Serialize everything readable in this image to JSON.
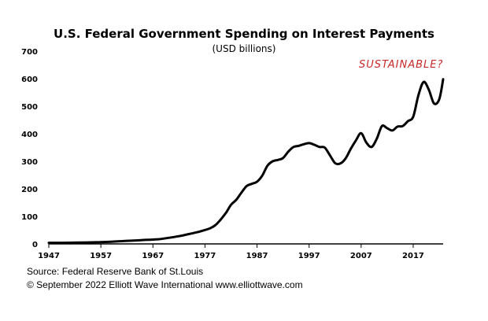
{
  "chart_data": {
    "type": "line",
    "title": "U.S. Federal Government Spending on Interest Payments",
    "subtitle": "(USD billions)",
    "annotation": "SUSTAINABLE?",
    "xlabel": "",
    "ylabel": "",
    "xlim": [
      1947,
      2022.75
    ],
    "ylim": [
      0,
      700
    ],
    "yticks": [
      0,
      100,
      200,
      300,
      400,
      500,
      600,
      700
    ],
    "xticks": [
      1947,
      1957,
      1967,
      1977,
      1987,
      1997,
      2007,
      2017
    ],
    "grid": false,
    "line_color": "#000000",
    "annotation_color": "#c62828",
    "series": [
      {
        "x": [
          1947,
          1950,
          1953,
          1956,
          1959,
          1962,
          1965,
          1968,
          1970,
          1972,
          1974,
          1976,
          1978,
          1979,
          1980,
          1981,
          1982,
          1983,
          1984,
          1985,
          1986,
          1987,
          1988,
          1989,
          1990,
          1991,
          1992,
          1993,
          1994,
          1995,
          1996,
          1997,
          1998,
          1999,
          2000,
          2001,
          2002,
          2003,
          2004,
          2005,
          2006,
          2007,
          2008,
          2009,
          2010,
          2011,
          2012,
          2013,
          2014,
          2015,
          2016,
          2017,
          2018,
          2019,
          2020,
          2021,
          2022,
          2022.75
        ],
        "y": [
          4,
          4,
          5,
          6,
          8,
          11,
          14,
          17,
          22,
          28,
          36,
          45,
          57,
          68,
          88,
          112,
          142,
          160,
          186,
          210,
          218,
          226,
          248,
          284,
          300,
          305,
          312,
          335,
          352,
          356,
          362,
          366,
          360,
          352,
          350,
          322,
          293,
          292,
          310,
          345,
          376,
          402,
          368,
          352,
          382,
          428,
          420,
          412,
          426,
          428,
          446,
          462,
          540,
          588,
          560,
          510,
          525,
          598
        ]
      }
    ]
  },
  "footer": {
    "source": "Source: Federal Reserve Bank of St.Louis",
    "copyright": "© September 2022   Elliott Wave International   www.elliottwave.com"
  }
}
